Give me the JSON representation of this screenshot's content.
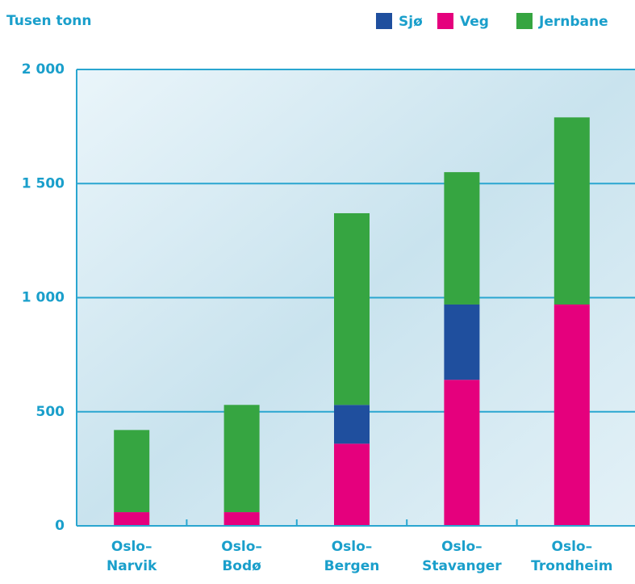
{
  "chart_data": {
    "type": "stacked_bar",
    "y_label": "Tusen tonn",
    "categories": [
      "Oslo–\nNarvik",
      "Oslo–\nBodø",
      "Oslo–\nBergen",
      "Oslo–\nStavanger",
      "Oslo–\nTrondheim"
    ],
    "series": [
      {
        "name": "Sjø",
        "color": "#1f4f9e",
        "values": [
          0,
          0,
          170,
          330,
          0
        ]
      },
      {
        "name": "Veg",
        "color": "#e5007d",
        "values": [
          60,
          60,
          360,
          640,
          970
        ]
      },
      {
        "name": "Jernbane",
        "color": "#36a541",
        "values": [
          360,
          470,
          840,
          580,
          820
        ]
      }
    ],
    "stack_order": [
      "Veg",
      "Sjø",
      "Jernbane"
    ],
    "ylim": [
      0,
      2000
    ],
    "yticks": [
      0,
      500,
      {
        "value": 1000,
        "label": "1 000"
      },
      {
        "value": 1500,
        "label": "1 500"
      },
      {
        "value": 2000,
        "label": "2 000"
      }
    ],
    "grid": true,
    "legend": "top-right"
  }
}
